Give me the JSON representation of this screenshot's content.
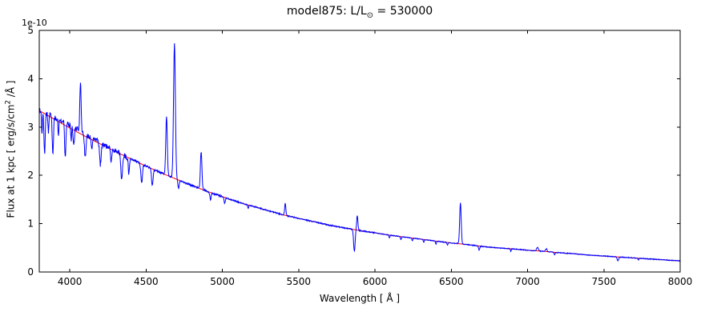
{
  "title_parts": {
    "prefix": "model875: L/L",
    "sub": "⊙",
    "suffix": " = 530000"
  },
  "ylabel_parts": {
    "prefix": "Flux at 1 kpc [ erg/s/cm",
    "sup": "2",
    "suffix": " /Å ]"
  },
  "chart_data": {
    "type": "line",
    "title": "model875: L/L⊙ = 530000",
    "xlabel": "Wavelength [ Å ]",
    "ylabel": "Flux at 1 kpc [ erg/s/cm² /Å ]",
    "offset_text": "1e-10",
    "flux_unit_scale": "1e-10",
    "xlim": [
      3800,
      8000
    ],
    "ylim": [
      0,
      5
    ],
    "xticks": [
      4000,
      4500,
      5000,
      5500,
      6000,
      6500,
      7000,
      7500,
      8000
    ],
    "yticks": [
      0,
      1,
      2,
      3,
      4,
      5
    ],
    "grid": false,
    "legend": null,
    "colors": {
      "spectrum": "#0000ff",
      "continuum": "#ff0000",
      "axes": "#000000",
      "background": "#ffffff"
    },
    "series": [
      {
        "id": "spectrum",
        "color": "#0000ff"
      },
      {
        "id": "continuum-fit",
        "color": "#ff0000"
      }
    ],
    "continuum_points": [
      [
        3800,
        3.34
      ],
      [
        3900,
        3.16
      ],
      [
        4000,
        2.98
      ],
      [
        4100,
        2.81
      ],
      [
        4200,
        2.65
      ],
      [
        4300,
        2.49
      ],
      [
        4400,
        2.34
      ],
      [
        4500,
        2.19
      ],
      [
        4600,
        2.05
      ],
      [
        4700,
        1.92
      ],
      [
        4800,
        1.79
      ],
      [
        4900,
        1.67
      ],
      [
        5000,
        1.56
      ],
      [
        5100,
        1.45
      ],
      [
        5200,
        1.36
      ],
      [
        5300,
        1.27
      ],
      [
        5400,
        1.18
      ],
      [
        5500,
        1.11
      ],
      [
        5600,
        1.04
      ],
      [
        5700,
        0.97
      ],
      [
        5800,
        0.91
      ],
      [
        5900,
        0.86
      ],
      [
        6000,
        0.81
      ],
      [
        6100,
        0.76
      ],
      [
        6200,
        0.72
      ],
      [
        6300,
        0.68
      ],
      [
        6400,
        0.64
      ],
      [
        6500,
        0.6
      ],
      [
        6600,
        0.57
      ],
      [
        6700,
        0.53
      ],
      [
        6800,
        0.5
      ],
      [
        6900,
        0.48
      ],
      [
        7000,
        0.45
      ],
      [
        7100,
        0.43
      ],
      [
        7200,
        0.4
      ],
      [
        7300,
        0.38
      ],
      [
        7400,
        0.35
      ],
      [
        7500,
        0.33
      ],
      [
        7600,
        0.31
      ],
      [
        7700,
        0.29
      ],
      [
        7800,
        0.27
      ],
      [
        7900,
        0.25
      ],
      [
        8000,
        0.23
      ]
    ],
    "features": [
      {
        "wl": 3818,
        "amp": -0.45,
        "sigma": 3,
        "kind": "absorption"
      },
      {
        "wl": 3835,
        "amp": -0.85,
        "sigma": 4,
        "kind": "absorption"
      },
      {
        "wl": 3860,
        "amp": -0.35,
        "sigma": 3,
        "kind": "absorption"
      },
      {
        "wl": 3889,
        "amp": -0.8,
        "sigma": 4,
        "kind": "absorption"
      },
      {
        "wl": 3926,
        "amp": -0.35,
        "sigma": 3,
        "kind": "absorption"
      },
      {
        "wl": 3970,
        "amp": -0.75,
        "sigma": 4,
        "kind": "absorption"
      },
      {
        "wl": 4009,
        "amp": -0.3,
        "sigma": 3,
        "kind": "absorption"
      },
      {
        "wl": 4026,
        "amp": -0.4,
        "sigma": 4,
        "kind": "absorption"
      },
      {
        "wl": 4020,
        "amp": 0.07,
        "sigma": 120,
        "kind": "continuum-excess"
      },
      {
        "wl": 4070,
        "amp": 1.0,
        "sigma": 4,
        "kind": "emission"
      },
      {
        "wl": 4101,
        "amp": -0.5,
        "sigma": 5,
        "kind": "absorption"
      },
      {
        "wl": 4144,
        "amp": -0.28,
        "sigma": 4,
        "kind": "absorption"
      },
      {
        "wl": 4200,
        "amp": -0.45,
        "sigma": 5,
        "kind": "absorption"
      },
      {
        "wl": 4271,
        "amp": -0.25,
        "sigma": 4,
        "kind": "absorption"
      },
      {
        "wl": 4340,
        "amp": -0.55,
        "sigma": 5,
        "kind": "absorption"
      },
      {
        "wl": 4387,
        "amp": -0.32,
        "sigma": 4,
        "kind": "absorption"
      },
      {
        "wl": 4471,
        "amp": -0.4,
        "sigma": 5,
        "kind": "absorption"
      },
      {
        "wl": 4541,
        "amp": -0.35,
        "sigma": 5,
        "kind": "absorption"
      },
      {
        "wl": 4634,
        "amp": 1.2,
        "sigma": 5,
        "kind": "emission"
      },
      {
        "wl": 4686,
        "amp": 2.78,
        "sigma": 6,
        "kind": "emission"
      },
      {
        "wl": 4713,
        "amp": -0.18,
        "sigma": 4,
        "kind": "absorption"
      },
      {
        "wl": 4861,
        "amp": 0.78,
        "sigma": 5,
        "kind": "emission"
      },
      {
        "wl": 4922,
        "amp": -0.15,
        "sigma": 4,
        "kind": "absorption"
      },
      {
        "wl": 5015,
        "amp": -0.12,
        "sigma": 4,
        "kind": "absorption"
      },
      {
        "wl": 5169,
        "amp": -0.08,
        "sigma": 3,
        "kind": "absorption"
      },
      {
        "wl": 5412,
        "amp": 0.25,
        "sigma": 4,
        "kind": "emission"
      },
      {
        "wl": 5865,
        "amp": -0.45,
        "sigma": 5,
        "kind": "absorption"
      },
      {
        "wl": 5884,
        "amp": 0.3,
        "sigma": 4,
        "kind": "emission"
      },
      {
        "wl": 6095,
        "amp": -0.06,
        "sigma": 3,
        "kind": "absorption"
      },
      {
        "wl": 6170,
        "amp": -0.06,
        "sigma": 3,
        "kind": "absorption"
      },
      {
        "wl": 6245,
        "amp": -0.06,
        "sigma": 3,
        "kind": "absorption"
      },
      {
        "wl": 6320,
        "amp": -0.06,
        "sigma": 3,
        "kind": "absorption"
      },
      {
        "wl": 6400,
        "amp": -0.06,
        "sigma": 3,
        "kind": "absorption"
      },
      {
        "wl": 6475,
        "amp": -0.05,
        "sigma": 3,
        "kind": "absorption"
      },
      {
        "wl": 6560,
        "amp": 0.85,
        "sigma": 5,
        "kind": "emission"
      },
      {
        "wl": 6683,
        "amp": -0.08,
        "sigma": 4,
        "kind": "absorption"
      },
      {
        "wl": 6890,
        "amp": -0.05,
        "sigma": 3,
        "kind": "absorption"
      },
      {
        "wl": 7065,
        "amp": 0.07,
        "sigma": 6,
        "kind": "emission"
      },
      {
        "wl": 7123,
        "amp": 0.06,
        "sigma": 5,
        "kind": "emission"
      },
      {
        "wl": 7177,
        "amp": -0.05,
        "sigma": 3,
        "kind": "absorption"
      },
      {
        "wl": 7592,
        "amp": -0.08,
        "sigma": 5,
        "kind": "absorption"
      },
      {
        "wl": 7726,
        "amp": -0.04,
        "sigma": 3,
        "kind": "absorption"
      }
    ],
    "noise_profile": [
      [
        3800,
        0.055
      ],
      [
        4400,
        0.02
      ],
      [
        5000,
        0.012
      ],
      [
        6000,
        0.008
      ]
    ]
  }
}
